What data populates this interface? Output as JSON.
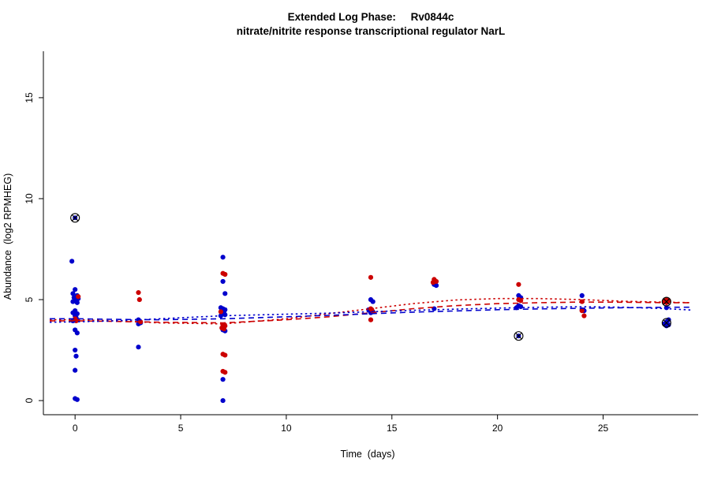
{
  "chart_data": {
    "type": "scatter",
    "title_line1": "Extended Log Phase:     Rv0844c",
    "title_line2": "nitrate/nitrite response transcriptional regulator NarL",
    "xlabel": "Time  (days)",
    "ylabel": "Abundance  (log2 RPMHEG)",
    "xlim": [
      -1.5,
      29.5
    ],
    "ylim": [
      -0.7,
      17.3
    ],
    "xticks": [
      0,
      5,
      10,
      15,
      20,
      25
    ],
    "yticks": [
      0,
      5,
      10,
      15
    ],
    "grid": false,
    "legend": "none",
    "colors": {
      "blue": "#0000CC",
      "red": "#CC0000",
      "marked": "#000000",
      "axis": "#000000"
    },
    "series": [
      {
        "name": "blue-points",
        "color": "#0000CC",
        "points": [
          [
            -0.15,
            6.9
          ],
          [
            0,
            5.5
          ],
          [
            -0.1,
            5.3
          ],
          [
            0.1,
            5.2
          ],
          [
            -0.05,
            5.1
          ],
          [
            0.15,
            5.05
          ],
          [
            0,
            5.0
          ],
          [
            -0.1,
            4.9
          ],
          [
            0.1,
            4.85
          ],
          [
            0,
            4.45
          ],
          [
            -0.1,
            4.35
          ],
          [
            0.1,
            4.3
          ],
          [
            0,
            4.2
          ],
          [
            0.05,
            4.1
          ],
          [
            -0.1,
            3.95
          ],
          [
            0,
            3.5
          ],
          [
            0.1,
            3.35
          ],
          [
            0,
            2.5
          ],
          [
            0.05,
            2.2
          ],
          [
            0,
            1.5
          ],
          [
            0,
            0.1
          ],
          [
            0.1,
            0.05
          ],
          [
            3,
            4.0
          ],
          [
            3.1,
            3.85
          ],
          [
            3,
            3.8
          ],
          [
            3,
            2.65
          ],
          [
            7,
            7.1
          ],
          [
            7,
            5.9
          ],
          [
            7.1,
            5.3
          ],
          [
            6.9,
            4.6
          ],
          [
            7,
            4.55
          ],
          [
            7.1,
            4.5
          ],
          [
            6.95,
            4.45
          ],
          [
            7.05,
            4.4
          ],
          [
            7,
            4.3
          ],
          [
            7.1,
            4.25
          ],
          [
            6.9,
            4.2
          ],
          [
            7,
            3.5
          ],
          [
            7.1,
            3.45
          ],
          [
            7,
            1.05
          ],
          [
            7,
            0.0
          ],
          [
            14,
            5.0
          ],
          [
            14.1,
            4.9
          ],
          [
            13.9,
            4.5
          ],
          [
            14,
            4.45
          ],
          [
            14.1,
            4.4
          ],
          [
            14,
            4.35
          ],
          [
            17,
            5.75
          ],
          [
            17.1,
            5.7
          ],
          [
            17,
            4.55
          ],
          [
            21,
            5.2
          ],
          [
            21.1,
            5.1
          ],
          [
            21,
            4.7
          ],
          [
            21.1,
            4.65
          ],
          [
            20.9,
            4.6
          ],
          [
            24,
            5.2
          ],
          [
            24,
            4.5
          ],
          [
            24.1,
            4.45
          ],
          [
            28,
            4.6
          ],
          [
            28.1,
            4.0
          ],
          [
            28,
            3.9
          ],
          [
            27.9,
            3.8
          ],
          [
            28.1,
            3.75
          ],
          [
            28,
            3.7
          ]
        ]
      },
      {
        "name": "red-points",
        "color": "#CC0000",
        "points": [
          [
            0.15,
            5.15
          ],
          [
            0,
            4.05
          ],
          [
            0.05,
            3.95
          ],
          [
            3,
            5.35
          ],
          [
            3.05,
            5.0
          ],
          [
            3.1,
            3.9
          ],
          [
            7,
            6.3
          ],
          [
            7.1,
            6.25
          ],
          [
            6.9,
            4.4
          ],
          [
            7,
            3.75
          ],
          [
            7.1,
            3.7
          ],
          [
            6.95,
            3.6
          ],
          [
            7.05,
            3.55
          ],
          [
            7,
            2.3
          ],
          [
            7.1,
            2.25
          ],
          [
            7,
            1.45
          ],
          [
            7.1,
            1.4
          ],
          [
            14,
            6.1
          ],
          [
            14,
            4.55
          ],
          [
            14.05,
            4.5
          ],
          [
            14,
            4.0
          ],
          [
            17,
            6.0
          ],
          [
            17.1,
            5.9
          ],
          [
            16.95,
            5.85
          ],
          [
            21,
            5.75
          ],
          [
            21,
            5.0
          ],
          [
            21.1,
            4.95
          ],
          [
            24,
            4.9
          ],
          [
            24,
            4.45
          ],
          [
            24.1,
            4.2
          ],
          [
            28,
            5.0
          ],
          [
            28.1,
            4.95
          ],
          [
            27.9,
            4.9
          ],
          [
            28,
            4.85
          ]
        ]
      }
    ],
    "marked_points": [
      {
        "x": 0,
        "y": 9.05,
        "dot_color": "#0000CC"
      },
      {
        "x": 21,
        "y": 3.2,
        "dot_color": "#0000CC"
      },
      {
        "x": 28,
        "y": 4.9,
        "dot_color": "#CC0000"
      },
      {
        "x": 28,
        "y": 3.85,
        "dot_color": "#0000CC"
      }
    ],
    "curves": [
      {
        "name": "red-dashed-trend",
        "color": "#CC0000",
        "dash": "7 5",
        "x": [
          -1.2,
          0,
          2,
          4,
          7,
          10,
          12,
          14,
          16,
          18,
          20,
          22,
          24,
          26,
          28,
          29.2
        ],
        "y": [
          3.95,
          3.95,
          3.92,
          3.88,
          3.85,
          4.0,
          4.15,
          4.35,
          4.55,
          4.7,
          4.8,
          4.85,
          4.88,
          4.87,
          4.85,
          4.85
        ]
      },
      {
        "name": "red-dotted-trend",
        "color": "#CC0000",
        "dash": "2.5 3.5",
        "x": [
          -1.2,
          0,
          2,
          4,
          7,
          10,
          12,
          14,
          16,
          18,
          20,
          22,
          24,
          26,
          28,
          29.2
        ],
        "y": [
          4.0,
          4.0,
          3.95,
          3.85,
          3.8,
          4.05,
          4.3,
          4.55,
          4.8,
          4.98,
          5.05,
          5.05,
          5.0,
          4.92,
          4.87,
          4.85
        ]
      },
      {
        "name": "blue-dashed-trend",
        "color": "#0000CC",
        "dash": "7 5",
        "x": [
          -1.2,
          0,
          2,
          4,
          7,
          10,
          12,
          14,
          16,
          18,
          20,
          22,
          24,
          26,
          28,
          29.2
        ],
        "y": [
          4.05,
          4.05,
          4.02,
          4.0,
          4.05,
          4.15,
          4.22,
          4.3,
          4.38,
          4.44,
          4.5,
          4.54,
          4.57,
          4.6,
          4.62,
          4.62
        ]
      },
      {
        "name": "blue-dotted-trend",
        "color": "#0000CC",
        "dash": "2.5 3.5",
        "x": [
          -1.2,
          0,
          2,
          4,
          7,
          10,
          12,
          14,
          16,
          18,
          20,
          22,
          24,
          26,
          28,
          29.2
        ],
        "y": [
          3.88,
          3.9,
          3.95,
          4.05,
          4.2,
          4.28,
          4.33,
          4.4,
          4.47,
          4.53,
          4.58,
          4.62,
          4.65,
          4.62,
          4.55,
          4.48
        ]
      }
    ]
  }
}
